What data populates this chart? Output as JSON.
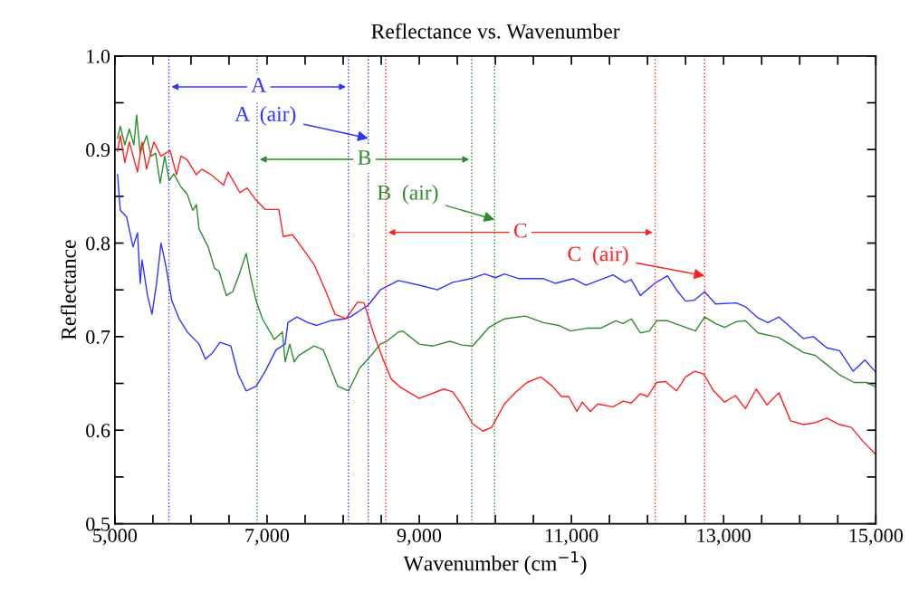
{
  "chart_data": {
    "type": "line",
    "title": "Reflectance vs. Wavenumber",
    "xlabel": "Wavenumber (cm$^{−1}$)",
    "ylabel": "Reflectance",
    "series": [
      {
        "color": "#3333ff",
        "x": [
          5036,
          5071,
          5155,
          5238,
          5298,
          5333,
          5357,
          5429,
          5488,
          5548,
          5607,
          5667,
          5750,
          5845,
          5952,
          6107,
          6190,
          6286,
          6381,
          6524,
          6619,
          6726,
          6857,
          6976,
          7119,
          7238,
          7274,
          7393,
          7536,
          7655,
          7833,
          8012,
          8095,
          8333,
          8488,
          8726,
          9000,
          9238,
          9440,
          9679,
          9857,
          10000,
          10119,
          10310,
          10631,
          10786,
          11024,
          11190,
          11548,
          11702,
          11786,
          11905,
          12095,
          12262,
          12381,
          12500,
          12619,
          12750,
          12893,
          13167,
          13286,
          13452,
          13583,
          13726,
          13881,
          14048,
          14179,
          14357,
          14524,
          14702,
          14857,
          15000
        ],
        "values": [
          0.873,
          0.835,
          0.828,
          0.796,
          0.811,
          0.757,
          0.782,
          0.744,
          0.724,
          0.757,
          0.8,
          0.777,
          0.738,
          0.719,
          0.705,
          0.692,
          0.676,
          0.683,
          0.694,
          0.69,
          0.66,
          0.642,
          0.647,
          0.663,
          0.686,
          0.692,
          0.715,
          0.721,
          0.715,
          0.712,
          0.717,
          0.719,
          0.721,
          0.734,
          0.75,
          0.76,
          0.755,
          0.75,
          0.758,
          0.762,
          0.767,
          0.763,
          0.767,
          0.762,
          0.762,
          0.757,
          0.762,
          0.755,
          0.766,
          0.758,
          0.761,
          0.744,
          0.757,
          0.765,
          0.75,
          0.738,
          0.739,
          0.748,
          0.735,
          0.736,
          0.732,
          0.72,
          0.715,
          0.721,
          0.71,
          0.698,
          0.7,
          0.688,
          0.685,
          0.663,
          0.675,
          0.662
        ]
      },
      {
        "color": "#2e8b2e",
        "x": [
          5036,
          5071,
          5131,
          5190,
          5250,
          5286,
          5333,
          5417,
          5476,
          5536,
          5595,
          5655,
          5714,
          5774,
          5869,
          5952,
          6024,
          6071,
          6107,
          6226,
          6310,
          6369,
          6464,
          6548,
          6619,
          6726,
          6786,
          6857,
          6940,
          7095,
          7202,
          7238,
          7298,
          7357,
          7417,
          7619,
          7738,
          7929,
          8071,
          8214,
          8369,
          8488,
          8571,
          8726,
          8786,
          9000,
          9179,
          9405,
          9560,
          9702,
          9917,
          10119,
          10393,
          10631,
          10833,
          10988,
          11202,
          11381,
          11583,
          11679,
          11786,
          11905,
          12024,
          12119,
          12262,
          12500,
          12631,
          12750,
          12893,
          13012,
          13167,
          13286,
          13452,
          13726,
          14048,
          14202,
          14357,
          14524,
          14714,
          14881,
          15000
        ],
        "values": [
          0.912,
          0.925,
          0.905,
          0.922,
          0.905,
          0.937,
          0.896,
          0.915,
          0.893,
          0.896,
          0.864,
          0.893,
          0.867,
          0.874,
          0.86,
          0.852,
          0.835,
          0.841,
          0.815,
          0.796,
          0.773,
          0.77,
          0.744,
          0.748,
          0.763,
          0.789,
          0.763,
          0.738,
          0.719,
          0.697,
          0.705,
          0.673,
          0.692,
          0.673,
          0.68,
          0.69,
          0.686,
          0.647,
          0.642,
          0.666,
          0.68,
          0.692,
          0.695,
          0.705,
          0.706,
          0.692,
          0.69,
          0.695,
          0.691,
          0.69,
          0.71,
          0.719,
          0.722,
          0.715,
          0.712,
          0.706,
          0.709,
          0.709,
          0.717,
          0.714,
          0.719,
          0.704,
          0.706,
          0.717,
          0.717,
          0.71,
          0.706,
          0.721,
          0.714,
          0.71,
          0.716,
          0.717,
          0.704,
          0.699,
          0.683,
          0.68,
          0.67,
          0.659,
          0.651,
          0.651,
          0.646
        ]
      },
      {
        "color": "#ff2020",
        "x": [
          5036,
          5071,
          5131,
          5190,
          5298,
          5357,
          5417,
          5512,
          5607,
          5726,
          5810,
          5869,
          5952,
          6071,
          6143,
          6250,
          6429,
          6488,
          6643,
          6738,
          6845,
          6976,
          7155,
          7214,
          7333,
          7452,
          7619,
          7774,
          7893,
          8036,
          8190,
          8274,
          8405,
          8524,
          8631,
          8750,
          9000,
          9321,
          9440,
          9560,
          9702,
          9833,
          9952,
          10119,
          10274,
          10417,
          10595,
          10750,
          10869,
          10964,
          11071,
          11143,
          11250,
          11345,
          11548,
          11679,
          11786,
          11905,
          12000,
          12119,
          12238,
          12381,
          12500,
          12619,
          12738,
          12869,
          13012,
          13155,
          13286,
          13429,
          13571,
          13726,
          13881,
          14048,
          14202,
          14357,
          14524,
          14679,
          14833,
          15000
        ],
        "values": [
          0.898,
          0.915,
          0.886,
          0.908,
          0.876,
          0.908,
          0.879,
          0.908,
          0.893,
          0.899,
          0.873,
          0.893,
          0.889,
          0.873,
          0.879,
          0.874,
          0.862,
          0.876,
          0.854,
          0.859,
          0.847,
          0.836,
          0.836,
          0.807,
          0.809,
          0.796,
          0.777,
          0.748,
          0.724,
          0.719,
          0.737,
          0.736,
          0.702,
          0.676,
          0.655,
          0.646,
          0.634,
          0.644,
          0.641,
          0.627,
          0.607,
          0.599,
          0.603,
          0.628,
          0.641,
          0.651,
          0.657,
          0.647,
          0.636,
          0.636,
          0.62,
          0.63,
          0.62,
          0.628,
          0.625,
          0.631,
          0.629,
          0.639,
          0.636,
          0.651,
          0.652,
          0.642,
          0.657,
          0.663,
          0.66,
          0.642,
          0.63,
          0.637,
          0.623,
          0.644,
          0.627,
          0.64,
          0.61,
          0.606,
          0.608,
          0.613,
          0.606,
          0.603,
          0.588,
          0.574
        ]
      }
    ],
    "xlim": [
      5000,
      15000
    ],
    "ylim": [
      0.5,
      1.0
    ],
    "xticks": [
      {
        "value": 5000,
        "label": "5,000"
      },
      {
        "value": 5500,
        "label": null
      },
      {
        "value": 6000,
        "label": null
      },
      {
        "value": 6500,
        "label": null
      },
      {
        "value": 7000,
        "label": "7,000"
      },
      {
        "value": 7500,
        "label": null
      },
      {
        "value": 8000,
        "label": null
      },
      {
        "value": 8500,
        "label": null
      },
      {
        "value": 9000,
        "label": "9,000"
      },
      {
        "value": 9500,
        "label": null
      },
      {
        "value": 10000,
        "label": null
      },
      {
        "value": 10500,
        "label": null
      },
      {
        "value": 11000,
        "label": "11,000"
      },
      {
        "value": 11500,
        "label": null
      },
      {
        "value": 12000,
        "label": null
      },
      {
        "value": 12500,
        "label": null
      },
      {
        "value": 13000,
        "label": "13,000"
      },
      {
        "value": 13500,
        "label": null
      },
      {
        "value": 14000,
        "label": null
      },
      {
        "value": 14500,
        "label": null
      },
      {
        "value": 15000,
        "label": "15,000"
      }
    ],
    "yticks": [
      {
        "value": 0.5,
        "label": "0.5"
      },
      {
        "value": 0.55,
        "label": null
      },
      {
        "value": 0.6,
        "label": "0.6"
      },
      {
        "value": 0.65,
        "label": null
      },
      {
        "value": 0.7,
        "label": "0.7"
      },
      {
        "value": 0.75,
        "label": null
      },
      {
        "value": 0.8,
        "label": "0.8"
      },
      {
        "value": 0.85,
        "label": null
      },
      {
        "value": 0.9,
        "label": "0.9"
      },
      {
        "value": 0.95,
        "label": null
      },
      {
        "value": 1.0,
        "label": "1.0"
      }
    ],
    "ref_lines": [
      {
        "axis": "x",
        "value": 5710,
        "label": null,
        "color": "#3333ff",
        "line_style": "dotted"
      },
      {
        "axis": "x",
        "value": 8070,
        "label": null,
        "color": "#3333ff",
        "line_style": "dotted"
      },
      {
        "axis": "x",
        "value": 8330,
        "label": null,
        "color": "#3333ff",
        "line_style": "dotted"
      },
      {
        "axis": "x",
        "value": 6870,
        "label": null,
        "color": "#2e8b2e",
        "line_style": "dotted"
      },
      {
        "axis": "x",
        "value": 9690,
        "label": null,
        "color": "#2e8b2e",
        "line_style": "dotted"
      },
      {
        "axis": "x",
        "value": 9990,
        "label": null,
        "color": "#2e8b2e",
        "line_style": "dotted"
      },
      {
        "axis": "x",
        "value": 8560,
        "label": null,
        "color": "#ff2020",
        "line_style": "dotted"
      },
      {
        "axis": "x",
        "value": 12100,
        "label": null,
        "color": "#ff2020",
        "line_style": "dotted"
      },
      {
        "axis": "x",
        "value": 12750,
        "label": null,
        "color": "#ff2020",
        "line_style": "dotted"
      }
    ],
    "annotations": [
      "A",
      {
        "text": "A  (air)",
        "x": 8330,
        "y": 0.912
      },
      "B",
      {
        "text": "B  (air)",
        "x": 9990,
        "y": 0.825
      },
      "C",
      {
        "text": "C  (air)",
        "x": 12750,
        "y": 0.765
      }
    ],
    "grid": false,
    "legend": false,
    "marker": "none",
    "line_style": "solid"
  }
}
